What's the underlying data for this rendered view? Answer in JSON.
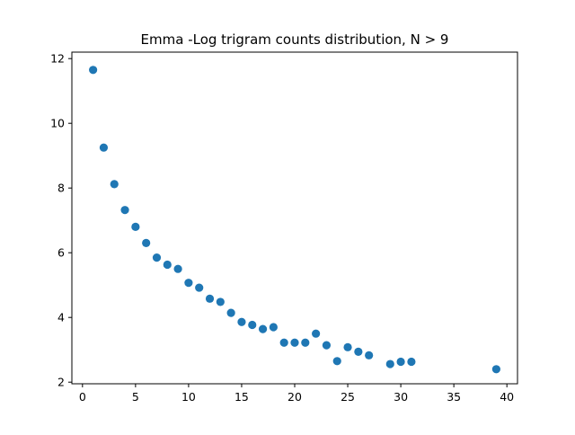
{
  "chart_data": {
    "type": "scatter",
    "title": "Emma -Log trigram counts distribution, N > 9",
    "xlabel": "",
    "ylabel": "",
    "xlim": [
      -1,
      41
    ],
    "ylim": [
      1.95,
      12.2
    ],
    "xticks": [
      0,
      5,
      10,
      15,
      20,
      25,
      30,
      35,
      40
    ],
    "yticks": [
      2,
      4,
      6,
      8,
      10,
      12
    ],
    "grid": false,
    "marker_color": "#1f77b4",
    "x": [
      1,
      2,
      3,
      4,
      5,
      6,
      7,
      8,
      9,
      10,
      11,
      12,
      13,
      14,
      15,
      16,
      17,
      18,
      19,
      20,
      21,
      22,
      23,
      24,
      25,
      26,
      27,
      29,
      30,
      31,
      39
    ],
    "y": [
      11.65,
      9.25,
      8.12,
      7.32,
      6.8,
      6.3,
      5.85,
      5.63,
      5.5,
      5.07,
      4.92,
      4.58,
      4.48,
      4.14,
      3.86,
      3.77,
      3.64,
      3.7,
      3.22,
      3.22,
      3.22,
      3.5,
      3.14,
      2.65,
      3.08,
      2.94,
      2.83,
      2.56,
      2.63,
      2.63,
      2.4
    ]
  }
}
